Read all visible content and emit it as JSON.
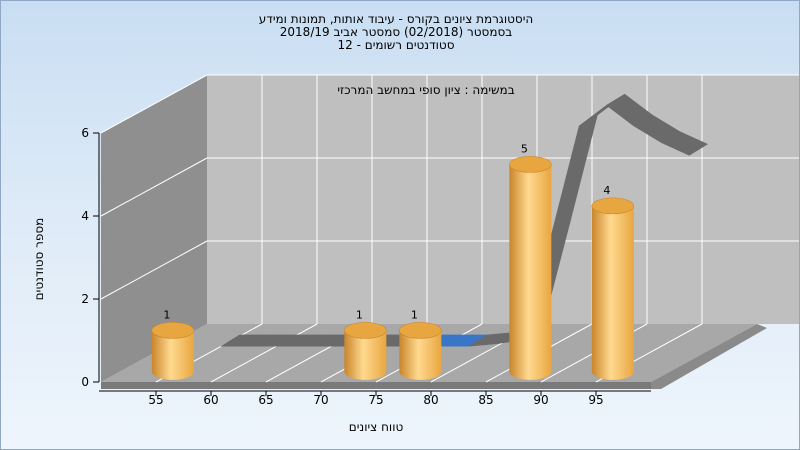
{
  "header": {
    "title_line1": "היסטוגרמת ציונים בקורס - עיבוד אותות, תמונות ומידע",
    "title_line2": "בסמסטר  (02/2018)  סמסטר אביב 2018/19",
    "title_line3": "סטודנטים רשומים - 12"
  },
  "chart_data": {
    "type": "bar",
    "subtitle": "במשימה : ציון סופי במחשב המרכזי",
    "xlabel": "טווח ציונים",
    "ylabel": "מספר סטודנטים",
    "x_ticks": [
      "55",
      "60",
      "65",
      "70",
      "75",
      "80",
      "85",
      "90",
      "95"
    ],
    "x_centers": [
      55,
      57.5,
      60,
      62.5,
      65,
      67.5,
      70,
      72.5,
      75,
      77.5,
      80,
      82.5,
      85,
      87.5,
      90,
      92.5,
      95,
      97.5
    ],
    "values": [
      1,
      0,
      0,
      0,
      0,
      0,
      0,
      1,
      0,
      1,
      0,
      0,
      0,
      5,
      0,
      0,
      4,
      0
    ],
    "ylim": [
      0,
      6
    ],
    "y_ticks": [
      0,
      2,
      4,
      6
    ],
    "grid": true,
    "trend_line": [
      0,
      0,
      0,
      0,
      0,
      0,
      0,
      0,
      0,
      0,
      0.06,
      0.15,
      2.7,
      5.3,
      5.8,
      5.3,
      4.9,
      4.6
    ],
    "trend_marker_x": 75,
    "colors": {
      "bar": "#e8a640",
      "bar_light": "#ffd98f",
      "bar_dark": "#c9852a",
      "ribbon": "#6a6a6a",
      "ribbon_marker": "#3a76c8",
      "back_wall": "#bfbfbf",
      "side_wall": "#8f8f8f",
      "floor": "#a8a8a8",
      "grid": "#ffffff"
    }
  }
}
